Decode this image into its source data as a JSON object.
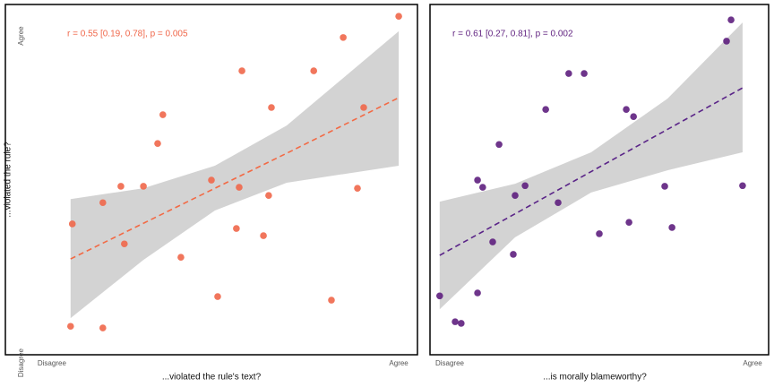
{
  "chart_data": [
    {
      "type": "scatter",
      "color": "#f0674a",
      "line_color": "#f26a45",
      "annotation": "r = 0.55 [0.19, 0.78], p = 0.005",
      "x_label": "...violated the rule's text?",
      "y_label": "...violated the rule?",
      "xlim": [
        -13.4,
        105.4
      ],
      "ylim": [
        2.5,
        109.6
      ],
      "xticks": [
        {
          "value": 0,
          "label": "Disagree"
        },
        {
          "value": 100,
          "label": "Agree"
        }
      ],
      "yticks": [
        {
          "value": 0,
          "label": "Disagree"
        },
        {
          "value": 100,
          "label": "Agree"
        }
      ],
      "x": [
        5.4,
        14.7,
        5.9,
        14.7,
        20.9,
        19.9,
        26.4,
        30.5,
        32.0,
        37.2,
        46.0,
        47.8,
        53.2,
        54.0,
        54.8,
        61.0,
        62.5,
        63.3,
        75.5,
        80.6,
        84.0,
        88.1,
        89.9,
        100
      ],
      "values": [
        11.2,
        10.7,
        42.5,
        49.0,
        36.4,
        54.0,
        54.0,
        67.1,
        75.9,
        32.3,
        55.9,
        20.3,
        41.1,
        53.7,
        89.3,
        38.9,
        51.2,
        78.1,
        89.3,
        19.2,
        99.5,
        53.4,
        78.1,
        106.0
      ],
      "fit": {
        "x": [
          5.4,
          26.4,
          47.0,
          67.7,
          100
        ],
        "values": [
          31.8,
          42.7,
          53.4,
          64.1,
          81.1
        ],
        "lower": [
          13.7,
          31.5,
          46.6,
          55.1,
          60.3
        ],
        "upper": [
          50.1,
          53.4,
          60.3,
          72.6,
          101.4
        ]
      }
    },
    {
      "type": "scatter",
      "color": "#5e1f7e",
      "line_color": "#5a2488",
      "annotation": "r = 0.61 [0.27, 0.81], p = 0.002",
      "x_label": "...is morally blameworthy?",
      "xlim": [
        -6.5,
        105.3
      ],
      "ylim": [
        2.5,
        109.6
      ],
      "xticks": [
        {
          "value": 0,
          "label": "Disagree"
        },
        {
          "value": 100,
          "label": "Agree"
        }
      ],
      "x": [
        -3.3,
        1.8,
        3.8,
        9.2,
        9.2,
        10.9,
        14.2,
        16.3,
        21.0,
        21.6,
        24.9,
        31.7,
        35.8,
        39.3,
        44.4,
        49.4,
        58.3,
        59.2,
        60.7,
        71.0,
        73.4,
        91.4,
        92.9,
        96.7
      ],
      "values": [
        20.5,
        12.6,
        12.1,
        21.4,
        55.9,
        53.7,
        37.0,
        66.8,
        33.2,
        51.2,
        54.2,
        77.5,
        49.0,
        88.5,
        88.5,
        39.5,
        77.5,
        43.0,
        75.3,
        54.0,
        41.4,
        98.4,
        104.9,
        54.2
      ],
      "fit": {
        "x": [
          -3.3,
          21.6,
          46.7,
          71.9,
          96.7
        ],
        "values": [
          32.9,
          45.6,
          58.5,
          71.4,
          84.1
        ],
        "lower": [
          16.4,
          38.4,
          52.1,
          58.9,
          64.4
        ],
        "upper": [
          49.3,
          54.8,
          64.4,
          80.8,
          104.1
        ]
      }
    }
  ]
}
